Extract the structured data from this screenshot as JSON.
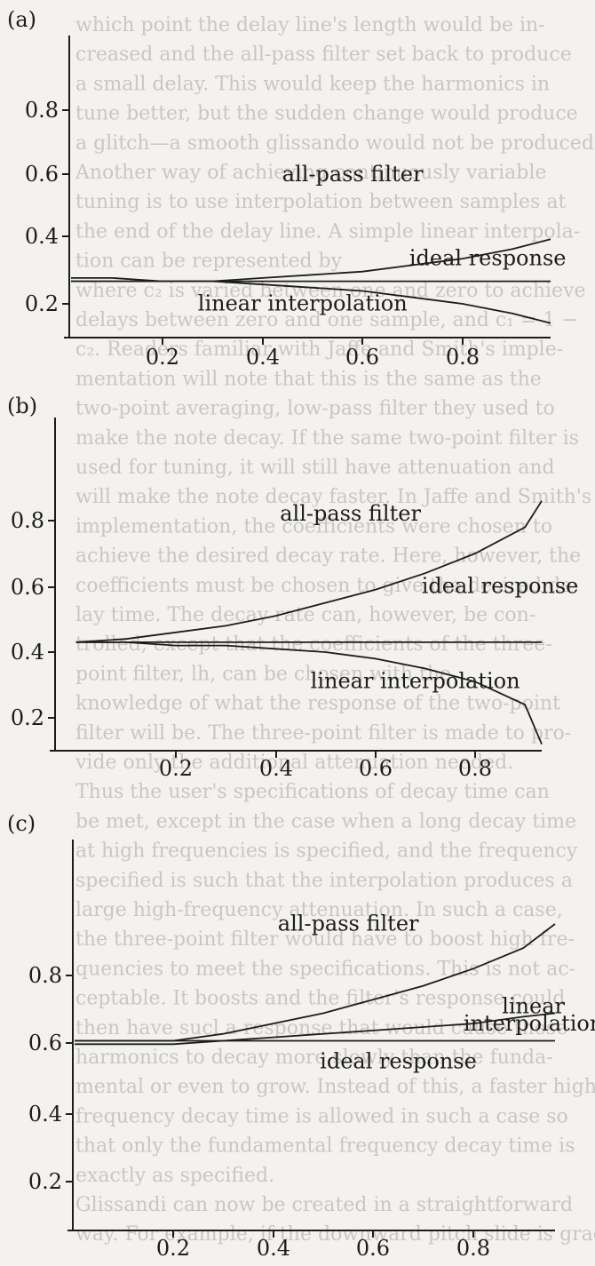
{
  "chart_data": [
    {
      "type": "line",
      "panel_label": "(a)",
      "x_ticks": [
        "0.2",
        "0.4",
        "0.6",
        "0.8"
      ],
      "y_ticks": [
        "0.2",
        "0.4",
        "0.6",
        "0.8"
      ],
      "xlim": [
        0,
        1.0
      ],
      "ylim": [
        0.1,
        0.95
      ],
      "series": [
        {
          "name": "all-pass filter",
          "x": [
            0,
            0.1,
            0.2,
            0.3,
            0.4,
            0.5,
            0.6,
            0.7,
            0.8,
            0.9,
            1.0
          ],
          "y": [
            0.28,
            0.28,
            0.27,
            0.27,
            0.28,
            0.29,
            0.3,
            0.32,
            0.34,
            0.37,
            0.4
          ]
        },
        {
          "name": "ideal response",
          "x": [
            0,
            1.0
          ],
          "y": [
            0.27,
            0.27
          ]
        },
        {
          "name": "linear interpolation",
          "x": [
            0,
            0.1,
            0.2,
            0.3,
            0.4,
            0.5,
            0.6,
            0.7,
            0.8,
            0.9,
            1.0
          ],
          "y": [
            0.27,
            0.27,
            0.27,
            0.27,
            0.26,
            0.25,
            0.24,
            0.22,
            0.2,
            0.17,
            0.14
          ]
        }
      ],
      "annotations": [
        {
          "text": "all-pass filter",
          "x": 0.58,
          "y": 0.58
        },
        {
          "text": "ideal response",
          "x": 0.85,
          "y": 0.32
        },
        {
          "text": "linear interpolation",
          "x": 0.48,
          "y": 0.18
        }
      ]
    },
    {
      "type": "line",
      "panel_label": "(b)",
      "x_ticks": [
        "0.2",
        "0.4",
        "0.6",
        "0.8"
      ],
      "y_ticks": [
        "0.2",
        "0.4",
        "0.6",
        "0.8"
      ],
      "xlim": [
        0,
        1.0
      ],
      "ylim": [
        0.1,
        0.95
      ],
      "series": [
        {
          "name": "all-pass filter",
          "x": [
            0,
            0.1,
            0.2,
            0.3,
            0.4,
            0.5,
            0.6,
            0.7,
            0.8,
            0.9,
            1.0
          ],
          "y": [
            0.43,
            0.44,
            0.46,
            0.48,
            0.51,
            0.55,
            0.59,
            0.64,
            0.7,
            0.78,
            0.86
          ]
        },
        {
          "name": "ideal response",
          "x": [
            0,
            1.0
          ],
          "y": [
            0.43,
            0.43
          ]
        },
        {
          "name": "linear interpolation",
          "x": [
            0,
            0.1,
            0.2,
            0.3,
            0.4,
            0.5,
            0.6,
            0.7,
            0.8,
            0.9,
            0.97
          ],
          "y": [
            0.43,
            0.43,
            0.42,
            0.42,
            0.41,
            0.4,
            0.38,
            0.35,
            0.31,
            0.24,
            0.12
          ]
        }
      ],
      "annotations": [
        {
          "text": "all-pass filter",
          "x": 0.55,
          "y": 0.8
        },
        {
          "text": "ideal response",
          "x": 0.85,
          "y": 0.58
        },
        {
          "text": "linear interpolation",
          "x": 0.68,
          "y": 0.29
        }
      ]
    },
    {
      "type": "line",
      "panel_label": "(c)",
      "x_ticks": [
        "0.2",
        "0.4",
        "0.6",
        "0.8"
      ],
      "y_ticks": [
        "0.2",
        "0.4",
        "0.6",
        "0.8"
      ],
      "xlim": [
        0,
        1.0
      ],
      "ylim": [
        0.05,
        1.0
      ],
      "series": [
        {
          "name": "all-pass filter",
          "x": [
            0,
            0.1,
            0.2,
            0.3,
            0.4,
            0.5,
            0.6,
            0.7,
            0.8,
            0.9,
            1.0
          ],
          "y": [
            0.61,
            0.61,
            0.61,
            0.63,
            0.66,
            0.69,
            0.73,
            0.77,
            0.82,
            0.88,
            0.95
          ]
        },
        {
          "name": "ideal response",
          "x": [
            0,
            1.0
          ],
          "y": [
            0.61,
            0.61
          ]
        },
        {
          "name": "linear interpolation",
          "x": [
            0,
            0.1,
            0.2,
            0.3,
            0.4,
            0.5,
            0.6,
            0.7,
            0.8,
            0.9,
            1.0
          ],
          "y": [
            0.6,
            0.6,
            0.6,
            0.61,
            0.62,
            0.63,
            0.64,
            0.65,
            0.66,
            0.68,
            0.69
          ]
        }
      ],
      "annotations": [
        {
          "text": "all-pass filter",
          "x": 0.55,
          "y": 0.93
        },
        {
          "text": "linear",
          "x": 0.92,
          "y": 0.69
        },
        {
          "text": "interpolation",
          "x": 0.92,
          "y": 0.64
        },
        {
          "text": "ideal response",
          "x": 0.65,
          "y": 0.53
        }
      ]
    }
  ],
  "background_text": [
    "which point the delay line's length would be in-",
    "creased and the all-pass filter set back to produce",
    "a small delay. This would keep the harmonics in",
    "tune better, but the sudden change would produce",
    "a glitch—a smooth glissando would not be produced.",
    "Another way of achieving continuously variable",
    "tuning is to use interpolation between samples at",
    "the end of the delay line. A simple linear interpola-",
    "tion can be represented by",
    "where c₂ is varied between one and zero to achieve",
    "delays between zero and one sample, and c₁ = 1 −",
    "c₂. Readers familiar with Jaffe and Smith's imple-",
    "mentation will note that this is the same as the",
    "two-point averaging, low-pass filter they used to",
    "make the note decay. If the same two-point filter is",
    "used for tuning, it will still have attenuation and",
    "will make the note decay faster. In Jaffe and Smith's",
    "implementation, the coefficients were chosen to",
    "achieve the desired decay rate. Here, however, the",
    "coefficients must be chosen to give the desired de-",
    "lay time. The decay rate can, however, be con-",
    "trolled, except that the coefficients of the three-",
    "point filter, lh, can be chosen with the",
    "knowledge of what the response of the two-point",
    "filter will be. The three-point filter is made to pro-",
    "vide only the additional attenuation needed.",
    "Thus the user's specifications of decay time can",
    "be met, except in the case when a long decay time",
    "at high frequencies is specified, and the frequency",
    "specified is such that the interpolation produces a",
    "large high-frequency attenuation. In such a case,",
    "the three-point filter would have to boost high fre-",
    "quencies to meet the specifications. This is not ac-",
    "ceptable. It boosts and the filter's response could",
    "then have sucl a response that would cause these",
    "harmonics to decay more slowly than the funda-",
    "mental or even to grow. Instead of this, a faster high",
    "frequency decay time is allowed in such a case so",
    "that only the fundamental frequency decay time is",
    "exactly as specified.",
    "Glissandi can now be created in a straightforward",
    "way. For example, if the downward pitch slide is grad-"
  ]
}
